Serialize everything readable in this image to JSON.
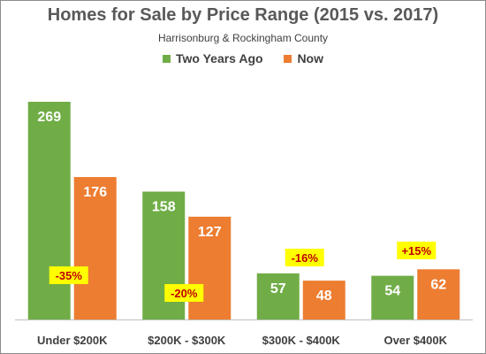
{
  "colors": {
    "series_1": "#70ad47",
    "series_2": "#ed7d31",
    "change_badge_bg": "#ffff00",
    "change_badge_text": "#c00000"
  },
  "chart_data": {
    "type": "bar",
    "title": "Homes for Sale by Price Range (2015 vs. 2017)",
    "subtitle": "Harrisonburg & Rockingham County",
    "categories": [
      "Under $200K",
      "$200K - $300K",
      "$300K - $400K",
      "Over $400K"
    ],
    "series": [
      {
        "name": "Two Years Ago",
        "values": [
          269,
          158,
          57,
          54
        ]
      },
      {
        "name": "Now",
        "values": [
          176,
          127,
          48,
          62
        ]
      }
    ],
    "changes": [
      "-35%",
      "-20%",
      "-16%",
      "+15%"
    ],
    "ylim": [
      0,
      269
    ],
    "legend": "top-center",
    "grid": false
  }
}
